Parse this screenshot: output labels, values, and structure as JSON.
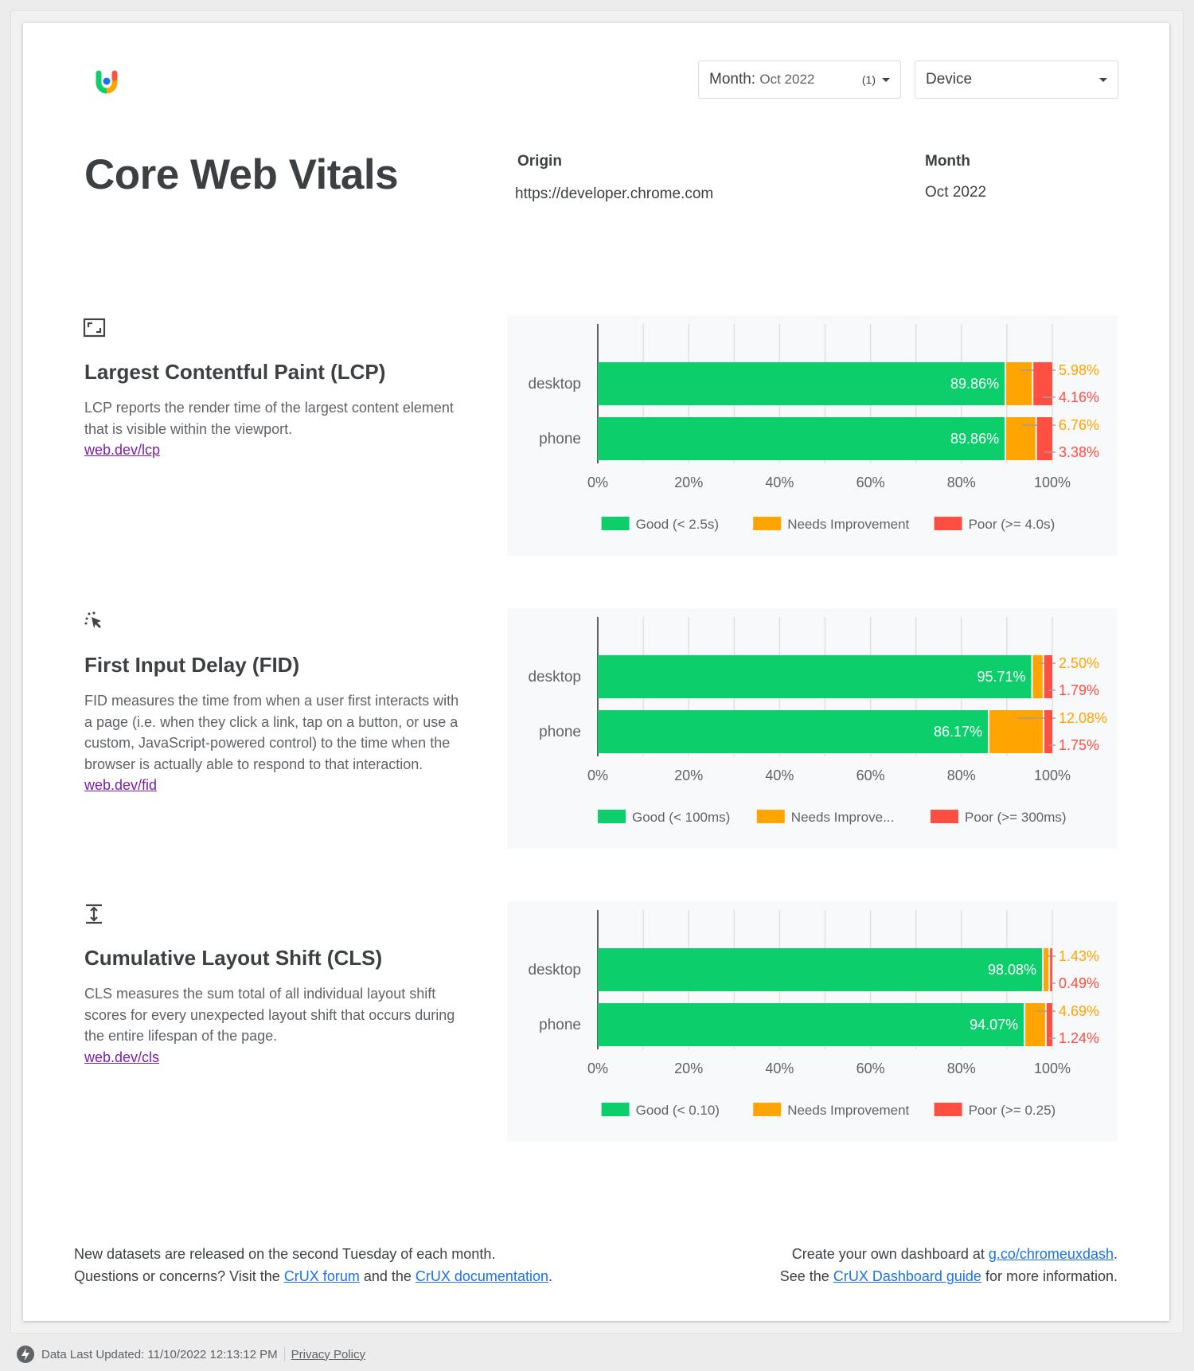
{
  "header": {
    "month_filter_label": "Month:",
    "month_filter_value": "Oct 2022",
    "month_filter_count": "(1)",
    "device_filter_label": "Device"
  },
  "page_title": "Core Web Vitals",
  "meta": {
    "origin_label": "Origin",
    "origin_value": "https://developer.chrome.com",
    "month_label": "Month",
    "month_value": "Oct 2022"
  },
  "colors": {
    "good": "#0cce6b",
    "needs_improvement": "#ffa400",
    "poor": "#ff4e42"
  },
  "sections": [
    {
      "icon": "resize-frame-icon",
      "title": "Largest Contentful Paint (LCP)",
      "description": "LCP reports the render time of the largest content element that is visible within the viewport.",
      "link": "web.dev/lcp"
    },
    {
      "icon": "click-cursor-icon",
      "title": "First Input Delay (FID)",
      "description": "FID measures the time from when a user first interacts with a page (i.e. when they click a link, tap on a button, or use a custom, JavaScript-powered control) to the time when the browser is actually able to respond to that interaction.",
      "link": "web.dev/fid"
    },
    {
      "icon": "vertical-shift-icon",
      "title": "Cumulative Layout Shift (CLS)",
      "description": "CLS measures the sum total of all individual layout shift scores for every unexpected layout shift that occurs during the entire lifespan of the page.",
      "link": "web.dev/cls"
    }
  ],
  "chart_data": [
    {
      "type": "bar",
      "stacked": true,
      "orientation": "horizontal",
      "categories": [
        "desktop",
        "phone"
      ],
      "xlim": [
        0,
        100
      ],
      "x_ticks": [
        "0%",
        "20%",
        "40%",
        "60%",
        "80%",
        "100%"
      ],
      "grid": true,
      "legend_position": "bottom",
      "series": [
        {
          "name": "Good (< 2.5s)",
          "values": [
            89.86,
            89.86
          ]
        },
        {
          "name": "Needs Improvement",
          "values": [
            5.98,
            6.76
          ]
        },
        {
          "name": "Poor (>= 4.0s)",
          "values": [
            4.16,
            3.38
          ]
        }
      ]
    },
    {
      "type": "bar",
      "stacked": true,
      "orientation": "horizontal",
      "categories": [
        "desktop",
        "phone"
      ],
      "xlim": [
        0,
        100
      ],
      "x_ticks": [
        "0%",
        "20%",
        "40%",
        "60%",
        "80%",
        "100%"
      ],
      "grid": true,
      "legend_position": "bottom",
      "series": [
        {
          "name": "Good (< 100ms)",
          "values": [
            95.71,
            86.17
          ]
        },
        {
          "name": "Needs Improve...",
          "values": [
            2.5,
            12.08
          ]
        },
        {
          "name": "Poor (>= 300ms)",
          "values": [
            1.79,
            1.75
          ]
        }
      ]
    },
    {
      "type": "bar",
      "stacked": true,
      "orientation": "horizontal",
      "categories": [
        "desktop",
        "phone"
      ],
      "xlim": [
        0,
        100
      ],
      "x_ticks": [
        "0%",
        "20%",
        "40%",
        "60%",
        "80%",
        "100%"
      ],
      "grid": true,
      "legend_position": "bottom",
      "series": [
        {
          "name": "Good (< 0.10)",
          "values": [
            98.08,
            94.07
          ]
        },
        {
          "name": "Needs Improvement",
          "values": [
            1.43,
            4.69
          ]
        },
        {
          "name": "Poor (>= 0.25)",
          "values": [
            0.49,
            1.24
          ]
        }
      ]
    }
  ],
  "footer": {
    "left_line1": "New datasets are released on the second Tuesday of each month.",
    "left_line2_pre": "Questions or concerns? Visit the ",
    "forum_link": "CrUX forum",
    "left_line2_mid": " and the ",
    "docs_link": "CrUX documentation",
    "left_line2_post": ".",
    "right_line1_pre": "Create your own dashboard at ",
    "dash_link": "g.co/chromeuxdash",
    "right_line1_post": ".",
    "right_line2_pre": "See the ",
    "guide_link": "CrUX Dashboard guide",
    "right_line2_post": " for more information."
  },
  "status_bar": {
    "updated": "Data Last Updated: 11/10/2022 12:13:12 PM",
    "privacy": "Privacy Policy"
  }
}
